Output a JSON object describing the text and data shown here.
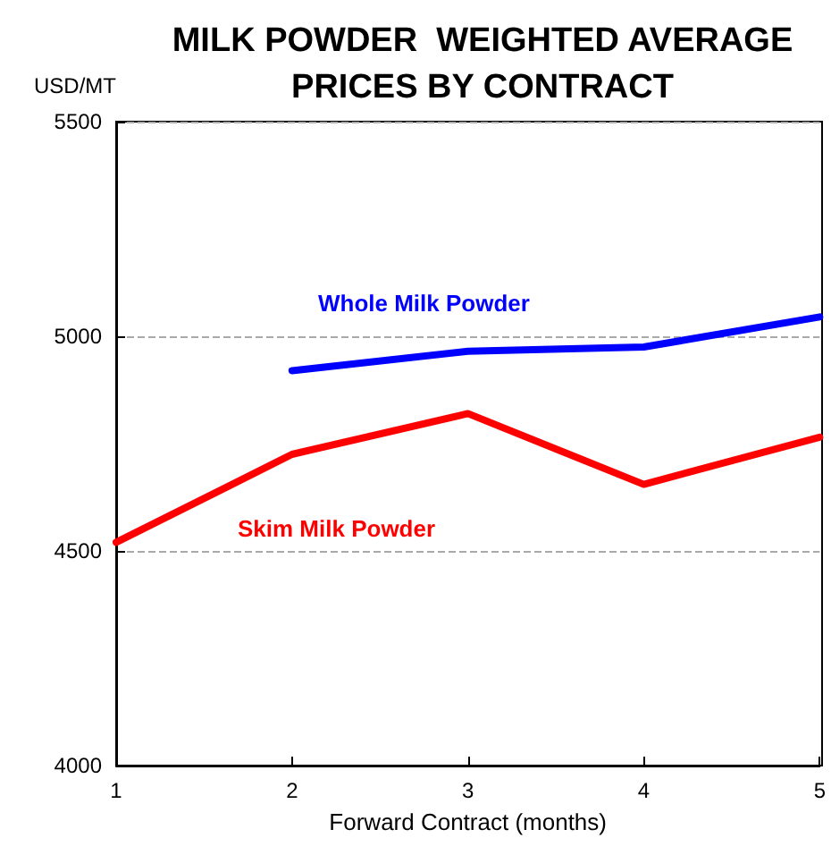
{
  "chart_data": {
    "type": "line",
    "title": "MILK POWDER  WEIGHTED AVERAGE\nPRICES BY CONTRACT",
    "xlabel": "Forward Contract (months)",
    "ylabel": "USD/MT",
    "series": [
      {
        "name": "Whole Milk Powder",
        "color": "#0000ff",
        "x": [
          2,
          3,
          4,
          5
        ],
        "values": [
          4920,
          4965,
          4975,
          5045
        ]
      },
      {
        "name": "Skim Milk Powder",
        "color": "#ff0000",
        "x": [
          1,
          2,
          3,
          4,
          5
        ],
        "values": [
          4520,
          4725,
          4820,
          4655,
          4765
        ]
      }
    ],
    "xlim": [
      1,
      5
    ],
    "xticks": [
      1,
      2,
      3,
      4,
      5
    ],
    "ylim": [
      4000,
      5500
    ],
    "yticks": [
      4000,
      4500,
      5000,
      5500
    ],
    "grid": "y",
    "legend": false,
    "marker": "none",
    "line_style": "solid"
  }
}
